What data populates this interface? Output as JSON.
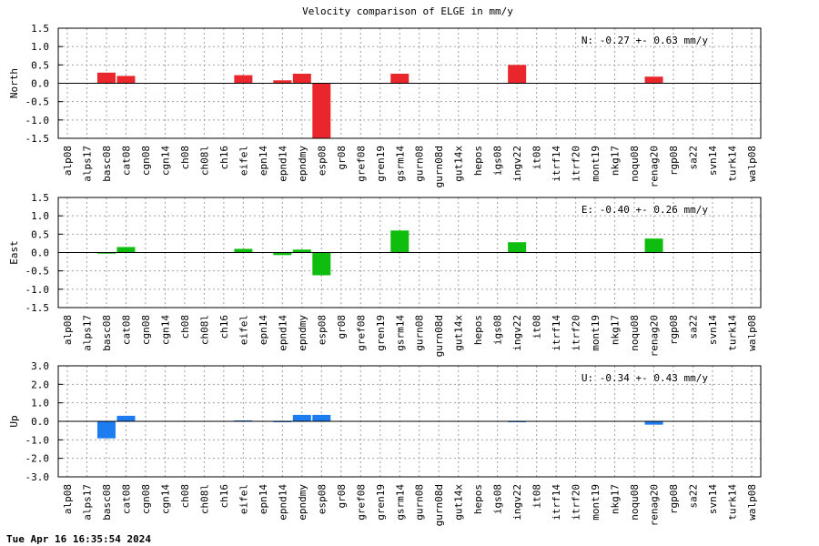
{
  "title": "Velocity comparison of ELGE in mm/y",
  "timestamp": "Tue Apr 16 16:35:54 2024",
  "chart_data": [
    {
      "type": "bar",
      "ylabel": "North",
      "color": "#e8262b",
      "annotation": "N:  -0.27 +-  0.63 mm/y",
      "ylim": [
        -1.5,
        1.5
      ],
      "yticks": [
        -1.5,
        -1.0,
        -0.5,
        0.0,
        0.5,
        1.0,
        1.5
      ],
      "ytick_labels": [
        "-1.5",
        "-1.0",
        "-0.5",
        "0.0",
        "0.5",
        "1.0",
        "1.5"
      ],
      "grid": true,
      "categories": [
        "alp08",
        "alps17",
        "basc08",
        "cat08",
        "cgn08",
        "cgn14",
        "ch08",
        "ch08l",
        "ch16",
        "eifel",
        "epn14",
        "epnd14",
        "epndmy",
        "esp08",
        "gr08",
        "gref08",
        "gren19",
        "gsrm14",
        "gurn08",
        "gurn08d",
        "gut14x",
        "hepos",
        "igs08",
        "ingv22",
        "it08",
        "itrf14",
        "itrf20",
        "mont19",
        "nkg17",
        "noqu08",
        "renag20",
        "rgp08",
        "sa22",
        "svn14",
        "turk14",
        "walp08"
      ],
      "values": [
        0,
        0,
        0.29,
        0.2,
        0,
        0,
        0,
        0,
        0,
        0.22,
        0,
        0.08,
        0.26,
        -1.6,
        0,
        0,
        0,
        0.26,
        0,
        0,
        0,
        0,
        0,
        0.5,
        0,
        0,
        0,
        0,
        0,
        0,
        0.18,
        0,
        0,
        0,
        0,
        0
      ]
    },
    {
      "type": "bar",
      "ylabel": "East",
      "color": "#0fbd0f",
      "annotation": "E:  -0.40 +-  0.26 mm/y",
      "ylim": [
        -1.5,
        1.5
      ],
      "yticks": [
        -1.5,
        -1.0,
        -0.5,
        0.0,
        0.5,
        1.0,
        1.5
      ],
      "ytick_labels": [
        "-1.5",
        "-1.0",
        "-0.5",
        "0.0",
        "0.5",
        "1.0",
        "1.5"
      ],
      "grid": true,
      "categories": [
        "alp08",
        "alps17",
        "basc08",
        "cat08",
        "cgn08",
        "cgn14",
        "ch08",
        "ch08l",
        "ch16",
        "eifel",
        "epn14",
        "epnd14",
        "epndmy",
        "esp08",
        "gr08",
        "gref08",
        "gren19",
        "gsrm14",
        "gurn08",
        "gurn08d",
        "gut14x",
        "hepos",
        "igs08",
        "ingv22",
        "it08",
        "itrf14",
        "itrf20",
        "mont19",
        "nkg17",
        "noqu08",
        "renag20",
        "rgp08",
        "sa22",
        "svn14",
        "turk14",
        "walp08"
      ],
      "values": [
        0,
        0,
        -0.03,
        0.15,
        0,
        0,
        0,
        0,
        0,
        0.1,
        0,
        -0.07,
        0.08,
        -0.62,
        0,
        0,
        0,
        0.6,
        0,
        0,
        0,
        0,
        0,
        0.28,
        0,
        0,
        0,
        0,
        0,
        0,
        0.38,
        0,
        0,
        0,
        0,
        0
      ]
    },
    {
      "type": "bar",
      "ylabel": "Up",
      "color": "#1c7cf0",
      "annotation": "U:  -0.34 +-  0.43 mm/y",
      "ylim": [
        -3.0,
        3.0
      ],
      "yticks": [
        -3.0,
        -2.0,
        -1.0,
        0.0,
        1.0,
        2.0,
        3.0
      ],
      "ytick_labels": [
        "-3.0",
        "-2.0",
        "-1.0",
        "0.0",
        "1.0",
        "2.0",
        "3.0"
      ],
      "grid": true,
      "categories": [
        "alp08",
        "alps17",
        "basc08",
        "cat08",
        "cgn08",
        "cgn14",
        "ch08",
        "ch08l",
        "ch16",
        "eifel",
        "epn14",
        "epnd14",
        "epndmy",
        "esp08",
        "gr08",
        "gref08",
        "gren19",
        "gsrm14",
        "gurn08",
        "gurn08d",
        "gut14x",
        "hepos",
        "igs08",
        "ingv22",
        "it08",
        "itrf14",
        "itrf20",
        "mont19",
        "nkg17",
        "noqu08",
        "renag20",
        "rgp08",
        "sa22",
        "svn14",
        "turk14",
        "walp08"
      ],
      "values": [
        0,
        0,
        -0.92,
        0.3,
        0,
        0,
        0,
        0,
        0,
        0.05,
        0,
        -0.04,
        0.35,
        0.35,
        0,
        0,
        0,
        0,
        0,
        0,
        0,
        0,
        0,
        -0.04,
        0,
        0,
        0,
        0,
        0,
        0,
        -0.18,
        0,
        0,
        0,
        0,
        0
      ]
    }
  ]
}
